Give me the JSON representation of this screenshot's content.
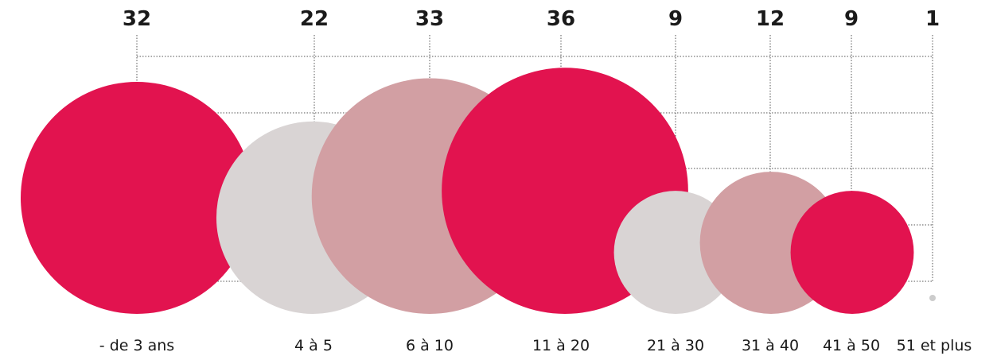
{
  "chart_data": {
    "type": "bubble",
    "title": "",
    "grid": true,
    "colors": {
      "crimson": "#e2134f",
      "light_gray": "#d9d4d4",
      "dusty_rose": "#d29fa3",
      "small_dot": "#cccccc"
    },
    "categories": [
      "- de 3 ans",
      "4 à 5",
      "6 à 10",
      "11 à 20",
      "21 à 30",
      "31 à 40",
      "41 à 50",
      "51 et plus"
    ],
    "values": [
      32,
      22,
      33,
      36,
      9,
      12,
      9,
      1
    ],
    "value_labels": [
      "32",
      "22",
      "33",
      "36",
      "9",
      "12",
      "9",
      "1"
    ],
    "bubble_colors": [
      "crimson",
      "light_gray",
      "dusty_rose",
      "crimson",
      "light_gray",
      "dusty_rose",
      "crimson",
      "small_dot"
    ]
  }
}
